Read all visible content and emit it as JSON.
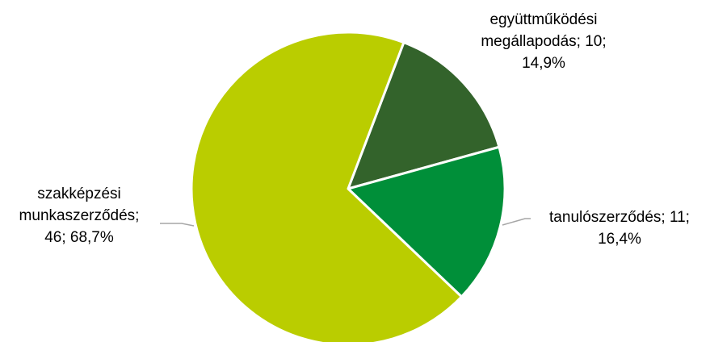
{
  "chart_data": {
    "type": "pie",
    "title": "",
    "slices": [
      {
        "name": "együttműködési megállapodás",
        "value": 10,
        "percent": "14,9%",
        "color": "#33632B",
        "label_lines": [
          "együttműködési",
          "megállapodás; 10;",
          "14,9%"
        ]
      },
      {
        "name": "tanulószerződés",
        "value": 11,
        "percent": "16,4%",
        "color": "#008F39",
        "label_lines": [
          "tanulószerződés; 11;",
          "16,4%"
        ]
      },
      {
        "name": "szakképzési munkaszerződés",
        "value": 46,
        "percent": "68,7%",
        "color": "#BACD00",
        "label_lines": [
          "szakképzési",
          "munkaszerződés;",
          "46; 68,7%"
        ]
      }
    ],
    "start_angle_deg": 20.8,
    "direction": "clockwise",
    "legend": "none",
    "leader_line_color": "#A6A6A6"
  }
}
